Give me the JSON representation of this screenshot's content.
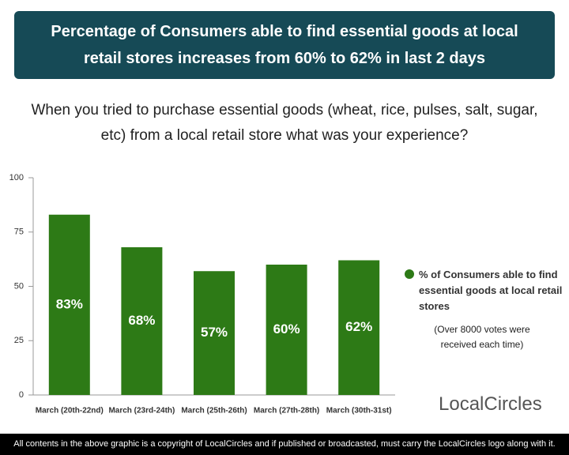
{
  "chart_data": {
    "type": "bar",
    "title": "Percentage of Consumers able to find essential goods at local retail stores increases from 60% to 62% in last 2 days",
    "subtitle": "When you tried to purchase essential goods (wheat, rice, pulses, salt, sugar, etc) from a local retail store what was your experience?",
    "categories": [
      "March (20th-22nd)",
      "March (23rd-24th)",
      "March (25th-26th)",
      "March (27th-28th)",
      "March (30th-31st)"
    ],
    "series": [
      {
        "name": "% of Consumers able to find essential goods at local retail stores",
        "color": "#2d7a16",
        "values": [
          83,
          68,
          57,
          60,
          62
        ],
        "value_labels": [
          "83%",
          "68%",
          "57%",
          "60%",
          "62%"
        ]
      }
    ],
    "ylim": [
      0,
      100
    ],
    "yticks": [
      0,
      25,
      50,
      75,
      100
    ],
    "grid": false,
    "note": "(Over 8000 votes were received each time)"
  },
  "logo": "LocalCircles",
  "footer": "All contents in the above graphic is a copyright of LocalCircles and if published or broadcasted, must carry the LocalCircles logo along with it."
}
